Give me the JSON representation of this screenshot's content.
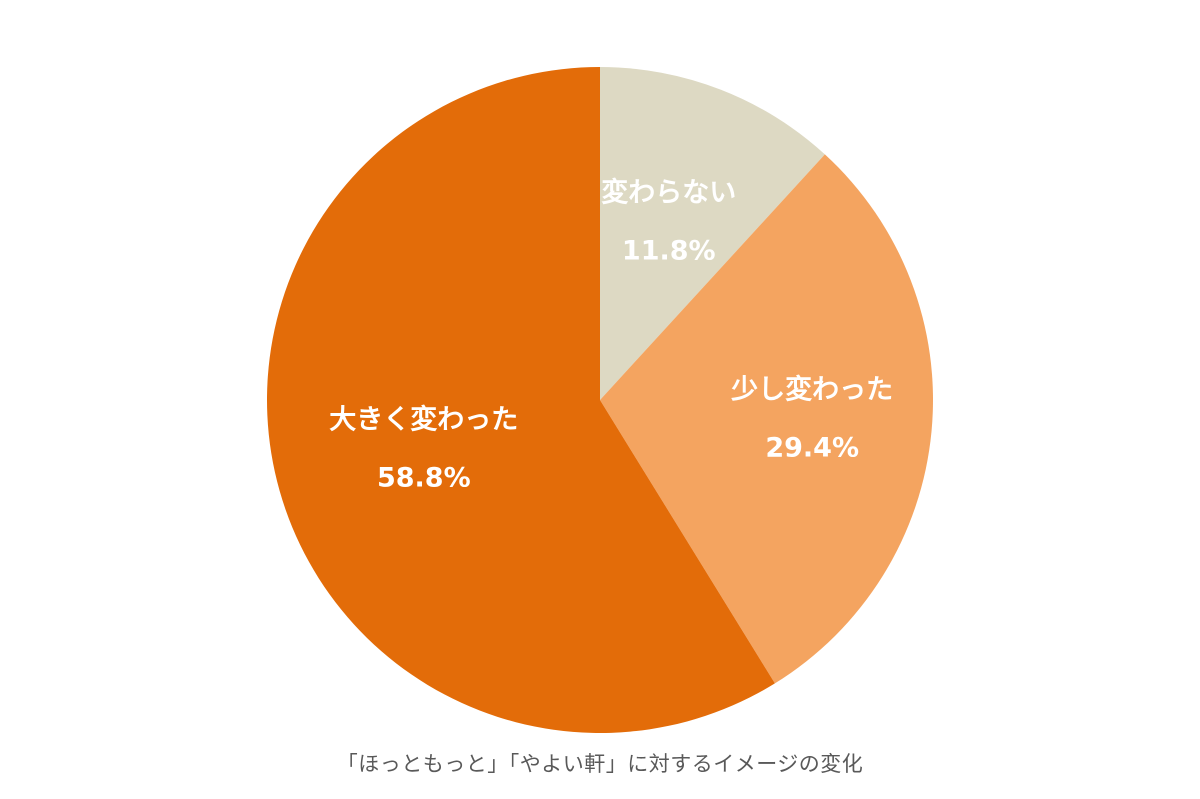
{
  "chart_data": {
    "type": "pie",
    "title": "「ほっともっと」「やよい軒」に対するイメージの変化",
    "start_angle": "12 o'clock",
    "direction": "clockwise",
    "legend": "none",
    "slices": [
      {
        "label": "変わらない",
        "value": 11.8,
        "value_label": "11.8%",
        "color": "#DDD9C3"
      },
      {
        "label": "少し変わった",
        "value": 29.4,
        "value_label": "29.4%",
        "color": "#F4A460"
      },
      {
        "label": "大きく変わった",
        "value": 58.8,
        "value_label": "58.8%",
        "color": "#E36C09"
      }
    ]
  }
}
